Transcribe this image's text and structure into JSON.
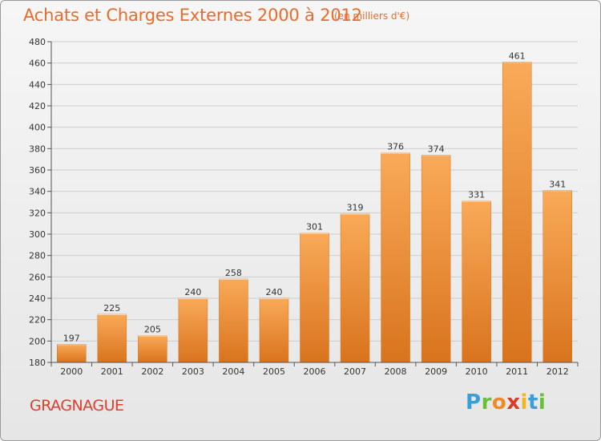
{
  "header": {
    "title": "Achats et Charges Externes 2000 à 2012",
    "unit": "(en milliers d'€)"
  },
  "footer": {
    "commune": "GRAGNAGUE",
    "logo": [
      "P",
      "r",
      "o",
      "x",
      "i",
      "t",
      "i"
    ],
    "logo_colors": [
      "#3a9fd8",
      "#6abf3a",
      "#f08a24",
      "#d93a2b",
      "#f2b51c",
      "#3a9fd8",
      "#6abf3a"
    ]
  },
  "colors": {
    "bar": "#ef8a2e",
    "bar_light": "#f9aa58",
    "bar_dark": "#d9731d",
    "grid": "#cccccc",
    "title": "#ea6a2a"
  },
  "chart_data": {
    "type": "bar",
    "title": "Achats et Charges Externes 2000 à 2012",
    "subtitle": "(en milliers d'€)",
    "categories": [
      "2000",
      "2001",
      "2002",
      "2003",
      "2004",
      "2005",
      "2006",
      "2007",
      "2008",
      "2009",
      "2010",
      "2011",
      "2012"
    ],
    "values": [
      197,
      225,
      205,
      240,
      258,
      240,
      301,
      319,
      376,
      374,
      331,
      461,
      341
    ],
    "ylim": [
      180,
      480
    ],
    "yticks": [
      180,
      200,
      220,
      240,
      260,
      280,
      300,
      320,
      340,
      360,
      380,
      400,
      420,
      440,
      460,
      480
    ],
    "grid": true,
    "data_labels": true
  }
}
